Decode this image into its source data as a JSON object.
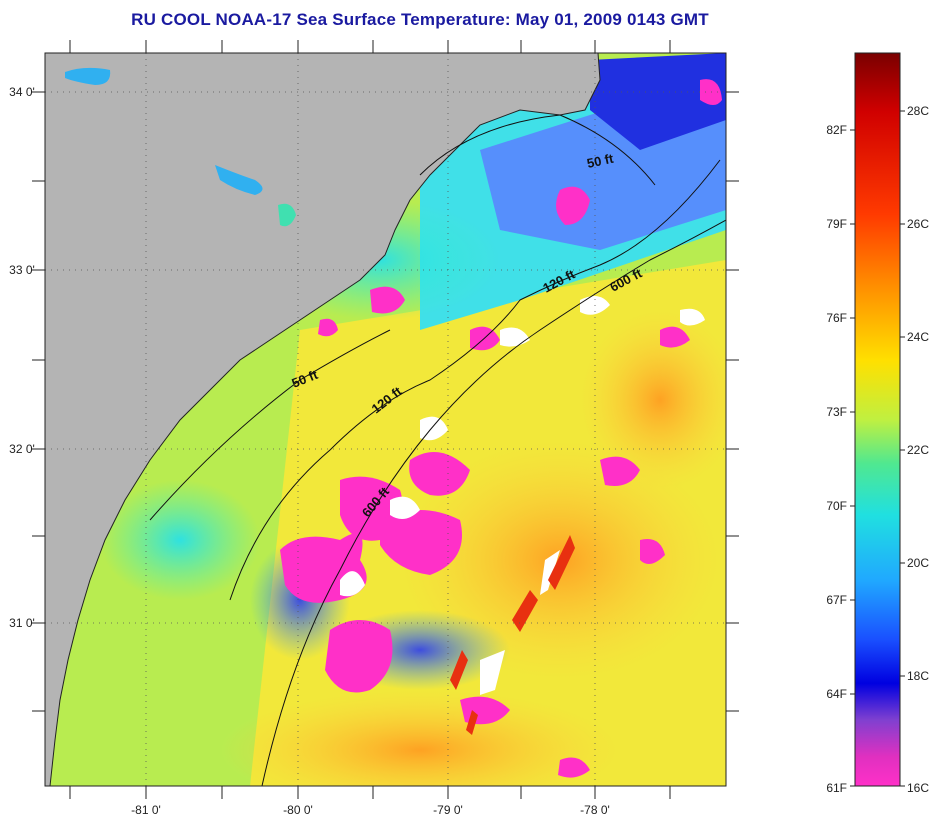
{
  "title": "RU COOL  NOAA-17  Sea Surface Temperature:  May 01, 2009 0143 GMT",
  "map": {
    "lon_ticks": [
      "-81 0'",
      "-80 0'",
      "-79 0'",
      "-78 0'"
    ],
    "lat_ticks": [
      "34 0'",
      "33 0'",
      "32 0'",
      "31 0'"
    ],
    "contour_labels": [
      "50 ft",
      "120 ft",
      "600 ft",
      "50 ft",
      "120 ft",
      "600 ft"
    ]
  },
  "colorbar": {
    "fahrenheit_labels": [
      "82F",
      "79F",
      "76F",
      "73F",
      "70F",
      "67F",
      "64F",
      "61F"
    ],
    "celsius_labels": [
      "28C",
      "26C",
      "24C",
      "22C",
      "20C",
      "18C",
      "16C"
    ],
    "colors": [
      "#7a0000",
      "#d00000",
      "#ff3a00",
      "#ff8c00",
      "#ffd000",
      "#ffff00",
      "#b8f03c",
      "#50e88c",
      "#20e0e0",
      "#20b4ff",
      "#1a60ff",
      "#0000e0",
      "#7040d0",
      "#e030c0",
      "#ff30c8"
    ]
  }
}
